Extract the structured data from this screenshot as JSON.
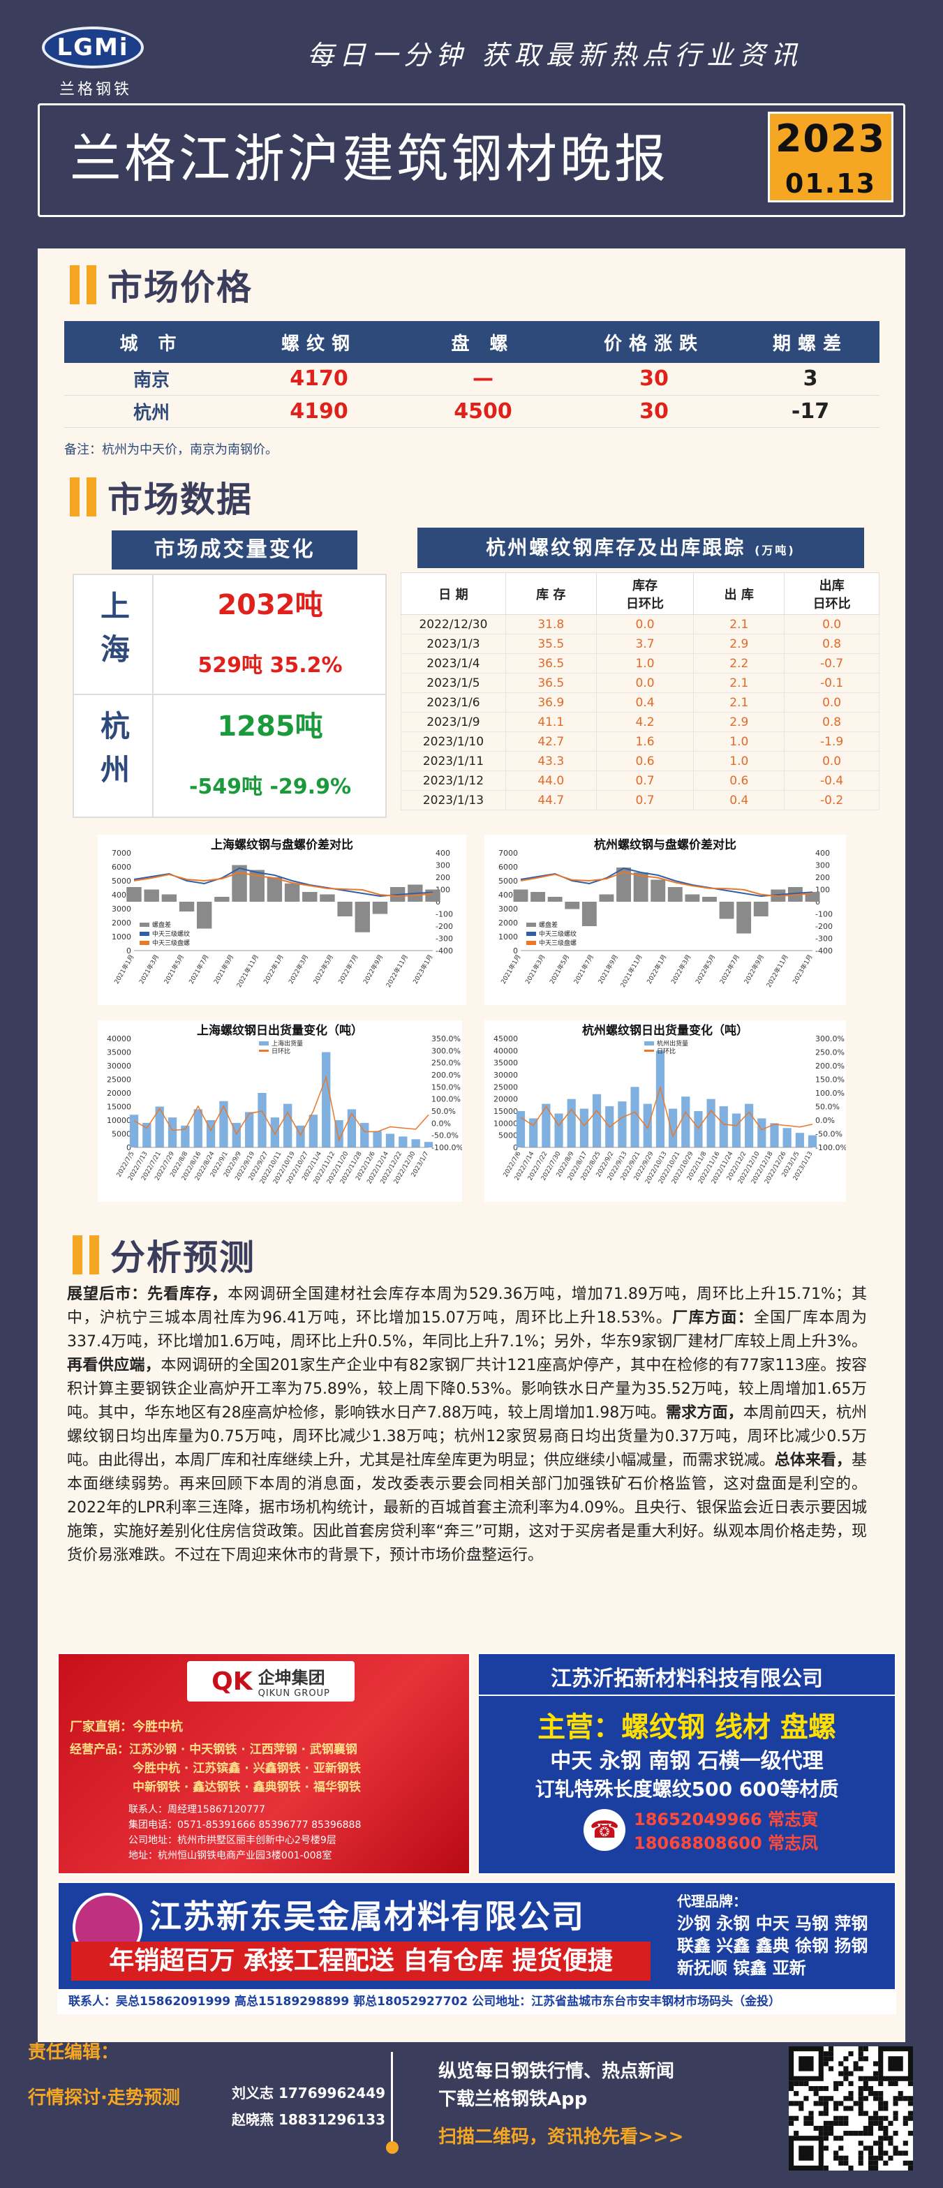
{
  "header": {
    "logo_text": "LGMi",
    "logo_sub": "兰格钢铁",
    "slogan": "每日一分钟  获取最新热点行业资讯",
    "title": "兰格江浙沪建筑钢材晚报",
    "date_year": "2023",
    "date_day": "01.13"
  },
  "market_price": {
    "section_title": "市场价格",
    "columns": [
      "城  市",
      "螺纹钢",
      "盘  螺",
      "价格涨跌",
      "期螺差"
    ],
    "rows": [
      [
        "南京",
        "4170",
        "—",
        "30",
        "3"
      ],
      [
        "杭州",
        "4190",
        "4500",
        "30",
        "-17"
      ]
    ],
    "note": "备注：杭州为中天价，南京为南钢价。"
  },
  "market_data": {
    "section_title": "市场数据",
    "volume_title": "市场成交量变化",
    "volume": [
      {
        "city": "上海",
        "value": "2032吨",
        "change": "529吨  35.2%",
        "color": "#e0201a"
      },
      {
        "city": "杭州",
        "value": "1285吨",
        "change": "-549吨  -29.9%",
        "color": "#1a9a3a"
      }
    ],
    "stock_title": "杭州螺纹钢库存及出库跟踪",
    "stock_unit": "(万吨)",
    "stock_columns": [
      "日  期",
      "库  存",
      "库存\n日环比",
      "出  库",
      "出库\n日环比"
    ],
    "stock_rows": [
      [
        "2022/12/30",
        "31.8",
        "0.0",
        "2.1",
        "0.0"
      ],
      [
        "2023/1/3",
        "35.5",
        "3.7",
        "2.9",
        "0.8"
      ],
      [
        "2023/1/4",
        "36.5",
        "1.0",
        "2.2",
        "-0.7"
      ],
      [
        "2023/1/5",
        "36.5",
        "0.0",
        "2.1",
        "-0.1"
      ],
      [
        "2023/1/6",
        "36.9",
        "0.4",
        "2.1",
        "0.0"
      ],
      [
        "2023/1/9",
        "41.1",
        "4.2",
        "2.9",
        "0.8"
      ],
      [
        "2023/1/10",
        "42.7",
        "1.6",
        "1.0",
        "-1.9"
      ],
      [
        "2023/1/11",
        "43.3",
        "0.6",
        "1.0",
        "0.0"
      ],
      [
        "2023/1/12",
        "44.0",
        "0.7",
        "0.6",
        "-0.4"
      ],
      [
        "2023/1/13",
        "44.7",
        "0.7",
        "0.4",
        "-0.2"
      ]
    ]
  },
  "chart_data": [
    {
      "type": "line",
      "title": "上海螺纹钢与盘螺价差对比",
      "series": [
        {
          "name": "螺盘差",
          "values": [
            120,
            100,
            60,
            -80,
            -220,
            40,
            300,
            260,
            200,
            150,
            80,
            60,
            -120,
            -250,
            -100,
            120,
            140,
            100
          ]
        },
        {
          "name": "中天三级螺纹",
          "values": [
            5100,
            5300,
            5500,
            5000,
            4800,
            5200,
            5900,
            5600,
            5400,
            5000,
            4700,
            4500,
            4300,
            4100,
            3900,
            4000,
            4100,
            4170
          ]
        },
        {
          "name": "中天三级盘螺",
          "values": [
            5000,
            5200,
            5450,
            5100,
            5000,
            5150,
            5600,
            5350,
            5200,
            4850,
            4650,
            4450,
            4400,
            4350,
            4000,
            3900,
            3950,
            4100
          ]
        }
      ],
      "ylim": [
        0,
        7000
      ],
      "y2lim": [
        -400,
        400
      ]
    },
    {
      "type": "line",
      "title": "杭州螺纹钢与盘螺价差对比",
      "series": [
        {
          "name": "螺盘差",
          "values": [
            100,
            80,
            40,
            -60,
            -200,
            60,
            280,
            240,
            180,
            120,
            60,
            40,
            -140,
            -260,
            -120,
            100,
            120,
            80
          ]
        },
        {
          "name": "中天三级螺纹",
          "values": [
            5100,
            5300,
            5500,
            5000,
            4800,
            5200,
            5900,
            5600,
            5400,
            5000,
            4700,
            4500,
            4300,
            4100,
            3900,
            4000,
            4100,
            4190
          ]
        },
        {
          "name": "中天三级盘螺",
          "values": [
            5000,
            5220,
            5460,
            5060,
            5000,
            5140,
            5620,
            5360,
            5220,
            4880,
            4640,
            4460,
            4440,
            4360,
            4020,
            3900,
            3980,
            4110
          ]
        }
      ],
      "ylim": [
        0,
        7000
      ],
      "y2lim": [
        -400,
        400
      ]
    },
    {
      "type": "bar",
      "title": "上海螺纹钢日出货量变化（吨）",
      "series": [
        {
          "name": "上海出货量",
          "values": [
            12000,
            9000,
            15000,
            11000,
            8000,
            14000,
            10000,
            17000,
            9000,
            13000,
            20000,
            11000,
            16000,
            8000,
            12000,
            35000,
            10000,
            14000,
            9000,
            6000,
            5000,
            4000,
            3000,
            2000
          ]
        },
        {
          "name": "日环比",
          "values": [
            10,
            -20,
            60,
            -30,
            -25,
            70,
            -30,
            70,
            -45,
            40,
            50,
            -45,
            45,
            -50,
            50,
            190,
            -70,
            40,
            -35,
            -35,
            -15,
            -20,
            -25,
            35
          ]
        }
      ],
      "ylim": [
        0,
        40000
      ],
      "y2lim": [
        -100,
        350
      ]
    },
    {
      "type": "bar",
      "title": "杭州螺纹钢日出货量变化（吨）",
      "series": [
        {
          "name": "杭州出货量",
          "values": [
            15000,
            12000,
            18000,
            14000,
            20000,
            16000,
            22000,
            17000,
            19000,
            25000,
            18000,
            40000,
            16000,
            21000,
            15000,
            20000,
            17000,
            14000,
            18000,
            12000,
            10000,
            8000,
            6000,
            5000
          ]
        },
        {
          "name": "日环比",
          "values": [
            10,
            -20,
            50,
            -20,
            40,
            -20,
            35,
            -25,
            10,
            30,
            -30,
            120,
            -60,
            30,
            -30,
            35,
            -15,
            -20,
            30,
            -35,
            -15,
            -20,
            -25,
            -15
          ]
        }
      ],
      "ylim": [
        0,
        45000
      ],
      "y2lim": [
        -100,
        300
      ]
    }
  ],
  "chart_axis": {
    "left_ticks_price": [
      "7000",
      "6000",
      "5000",
      "4000",
      "3000",
      "2000",
      "1000",
      "0"
    ],
    "right_ticks_price": [
      "400",
      "300",
      "200",
      "100",
      "0",
      "-100",
      "-200",
      "-300",
      "-400"
    ],
    "left_ticks_sh": [
      "40000",
      "35000",
      "30000",
      "25000",
      "20000",
      "15000",
      "10000",
      "5000",
      "0"
    ],
    "left_ticks_hz": [
      "45000",
      "40000",
      "35000",
      "30000",
      "25000",
      "20000",
      "15000",
      "10000",
      "5000",
      "0"
    ],
    "right_ticks_sh": [
      "350.0%",
      "300.0%",
      "250.0%",
      "200.0%",
      "150.0%",
      "100.0%",
      "50.0%",
      "0.0%",
      "-50.0%",
      "-100.0%"
    ],
    "right_ticks_hz": [
      "300.0%",
      "250.0%",
      "200.0%",
      "150.0%",
      "100.0%",
      "50.0%",
      "0.0%",
      "-50.0%",
      "-100.0%"
    ],
    "price_dates": [
      "2021年1月",
      "2021年3月",
      "2021年5月",
      "2021年7月",
      "2021年9月",
      "2021年11月",
      "2022年1月",
      "2022年3月",
      "2022年5月",
      "2022年7月",
      "2022年9月",
      "2022年11月",
      "2023年1月"
    ],
    "sh_dates": [
      "2022/7/5",
      "2022/7/13",
      "2022/7/21",
      "2022/7/29",
      "2022/8/8",
      "2022/8/16",
      "2022/8/24",
      "2022/9/1",
      "2022/9/9",
      "2022/9/19",
      "2022/9/27",
      "2022/10/11",
      "2022/10/19",
      "2022/10/27",
      "2022/11/4",
      "2022/11/12",
      "2022/11/20",
      "2022/11/28",
      "2022/12/6",
      "2022/12/14",
      "2022/12/22",
      "2022/12/30",
      "2023/1/7"
    ],
    "hz_dates": [
      "2022/7/6",
      "2022/7/14",
      "2022/7/22",
      "2022/7/30",
      "2022/8/9",
      "2022/8/17",
      "2022/8/25",
      "2022/9/2",
      "2022/9/13",
      "2022/9/21",
      "2022/9/29",
      "2022/10/13",
      "2022/10/21",
      "2022/10/29",
      "2022/11/8",
      "2022/11/16",
      "2022/11/24",
      "2022/12/2",
      "2022/12/10",
      "2022/12/18",
      "2022/12/26",
      "2023/1/5",
      "2023/1/13"
    ]
  },
  "analysis": {
    "section_title": "分析预测",
    "paragraphs": [
      {
        "b": "展望后市：",
        "t": ""
      },
      {
        "b": "先看库存，",
        "t": "本网调研全国建材社会库存本周为529.36万吨，增加71.89万吨，周环比上升15.71%；其中，沪杭宁三城本周社库为96.41万吨，环比增加15.07万吨，周环比上升18.53%。"
      },
      {
        "b": "厂库方面：",
        "t": "全国厂库本周为337.4万吨，环比增加1.6万吨，周环比上升0.5%，年同比上升7.1%；另外，华东9家钢厂建材厂库较上周上升3%。"
      },
      {
        "b": "再看供应端，",
        "t": "本网调研的全国201家生产企业中有82家钢厂共计121座高炉停产，其中在检修的有77家113座。按容积计算主要钢铁企业高炉开工率为75.89%，较上周下降0.53%。影响铁水日产量为35.52万吨，较上周增加1.65万吨。其中，华东地区有28座高炉检修，影响铁水日产7.88万吨，较上周增加1.98万吨。"
      },
      {
        "b": "需求方面，",
        "t": "本周前四天，杭州螺纹钢日均出库量为0.75万吨，周环比减少1.38万吨；杭州12家贸易商日均出货量为0.37万吨，周环比减少0.5万吨。由此得出，本周厂库和社库继续上升，尤其是社库垒库更为明显；供应继续小幅减量，而需求锐减。"
      },
      {
        "b": "总体来看，",
        "t": "基本面继续弱势。再来回顾下本周的消息面，发改委表示要会同相关部门加强铁矿石价格监管，这对盘面是利空的。2022年的LPR利率三连降，据市场机构统计，最新的百城首套主流利率为4.09%。且央行、银保监会近日表示要因城施策，实施好差别化住房信贷政策。因此首套房贷利率“奔三”可期，这对于买房者是重大利好。纵观本周价格走势，现货价易涨难跌。不过在下周迎来休市的背景下，预计市场价盘整运行。"
      }
    ]
  },
  "ads": {
    "qikun": {
      "name": "企坤集团",
      "en": "QIKUN GROUP",
      "direct": "厂家直销：今胜中杭",
      "brands": [
        "经营产品：江苏沙钢 · 中天钢铁 · 江西萍钢 · 武钢襄钢",
        "今胜中杭 · 江苏镔鑫 · 兴鑫钢铁 · 亚新钢铁",
        "中新钢铁 · 鑫达钢铁 · 鑫典钢铁 · 福华钢铁"
      ],
      "contact": "联系人：周经理15867120777",
      "phone": "集团电话：0571-85391666 85396777 85396888",
      "addr1": "公司地址：杭州市拱墅区丽丰创新中心2号楼9层",
      "addr2": "地址：杭州恒山钢铁电商产业园3楼001-008室"
    },
    "yituo": {
      "name": "江苏沂拓新材料科技有限公司",
      "main": "主营：螺纹钢 线材 盘螺",
      "agent": "中天 永钢 南钢 石横一级代理",
      "custom": "订轧特殊长度螺纹500 600等材质",
      "phone1": "18652049966 常志寅",
      "phone2": "18068808600 常志凤"
    },
    "xindongwu": {
      "name": "江苏新东吴金属材料有限公司",
      "slogan": "年销超百万 承接工程配送 自有仓库 提货便捷",
      "brands_title": "代理品牌：",
      "brands": [
        "沙钢 永钢 中天 马钢 萍钢",
        "联鑫 兴鑫 鑫典 徐钢 扬钢",
        "新抚顺 镔鑫 亚新"
      ],
      "contact": "联系人：吴总15862091999  高总15189298899  郭总18052927702  公司地址：江苏省盐城市东台市安丰钢材市场码头（金投）"
    }
  },
  "footer": {
    "editor_title": "责任编辑：",
    "column": "行情探讨·走势预测",
    "editors": [
      "刘义志 17769962449",
      "赵晓燕 18831296133"
    ],
    "promo1": "纵览每日钢铁行情、热点新闻",
    "promo2": "下载兰格钢铁App",
    "promo3": "扫描二维码，资讯抢先看>>>"
  },
  "colors": {
    "bg": "#3b3d5c",
    "accent": "#f5a623",
    "navy": "#2e4a7a",
    "up": "#e0201a",
    "down": "#1a9a3a"
  }
}
